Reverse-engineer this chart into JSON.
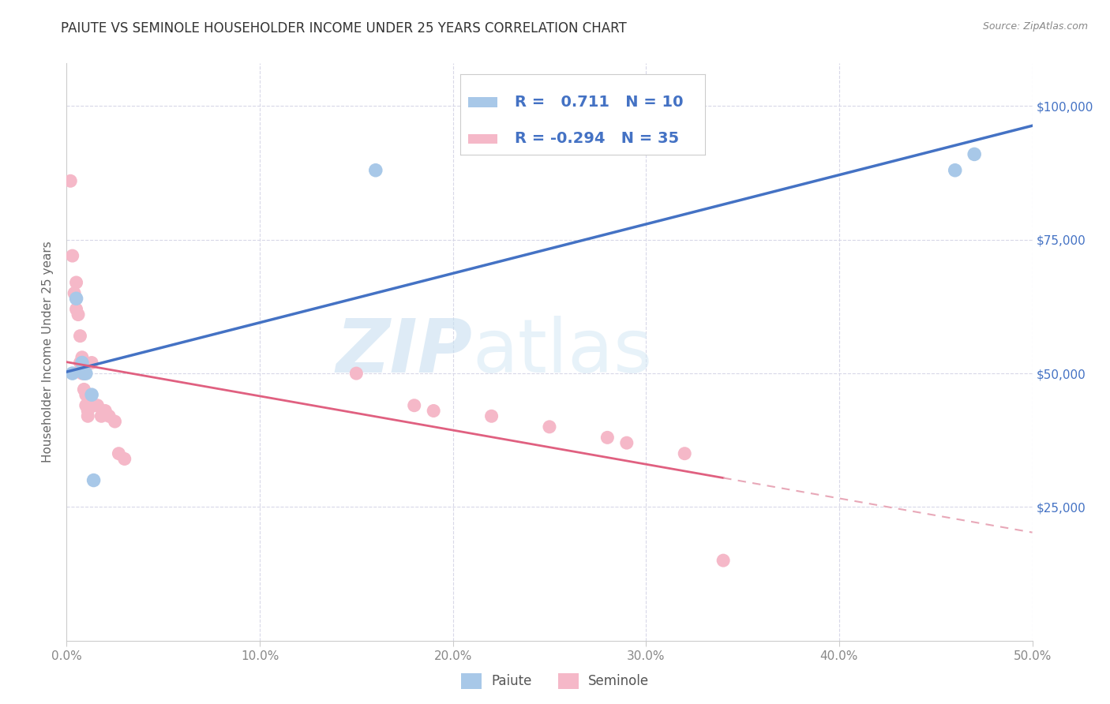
{
  "title": "PAIUTE VS SEMINOLE HOUSEHOLDER INCOME UNDER 25 YEARS CORRELATION CHART",
  "source": "Source: ZipAtlas.com",
  "ylabel": "Householder Income Under 25 years",
  "xlabel_ticks": [
    "0.0%",
    "10.0%",
    "20.0%",
    "30.0%",
    "40.0%",
    "50.0%"
  ],
  "ylabel_ticks": [
    "$25,000",
    "$50,000",
    "$75,000",
    "$100,000"
  ],
  "xlim": [
    0.0,
    0.5
  ],
  "ylim": [
    0,
    108000
  ],
  "watermark_zip": "ZIP",
  "watermark_atlas": "atlas",
  "paiute_color": "#a8c8e8",
  "seminole_color": "#f5b8c8",
  "paiute_line_color": "#4472c4",
  "seminole_line_color": "#e06080",
  "seminole_dash_color": "#e8a8b8",
  "legend_text_color": "#4472c4",
  "R_paiute": "0.711",
  "N_paiute": "10",
  "R_seminole": "-0.294",
  "N_seminole": "35",
  "paiute_x": [
    0.003,
    0.005,
    0.008,
    0.009,
    0.01,
    0.013,
    0.014,
    0.16,
    0.46,
    0.47
  ],
  "paiute_y": [
    50000,
    64000,
    52000,
    50000,
    50000,
    46000,
    30000,
    88000,
    88000,
    91000
  ],
  "seminole_x": [
    0.002,
    0.003,
    0.004,
    0.005,
    0.005,
    0.006,
    0.007,
    0.007,
    0.008,
    0.008,
    0.009,
    0.009,
    0.01,
    0.01,
    0.011,
    0.011,
    0.012,
    0.013,
    0.014,
    0.016,
    0.018,
    0.02,
    0.022,
    0.025,
    0.027,
    0.03,
    0.15,
    0.18,
    0.19,
    0.22,
    0.25,
    0.28,
    0.29,
    0.32,
    0.34
  ],
  "seminole_y": [
    86000,
    72000,
    65000,
    67000,
    62000,
    61000,
    57000,
    52000,
    53000,
    50000,
    50000,
    47000,
    46000,
    44000,
    43000,
    42000,
    45000,
    52000,
    44000,
    44000,
    42000,
    43000,
    42000,
    41000,
    35000,
    34000,
    50000,
    44000,
    43000,
    42000,
    40000,
    38000,
    37000,
    35000,
    15000
  ],
  "grid_color": "#d8d8e8",
  "spine_color": "#cccccc",
  "tick_color": "#888888",
  "title_fontsize": 12,
  "axis_fontsize": 11,
  "legend_fontsize": 13
}
